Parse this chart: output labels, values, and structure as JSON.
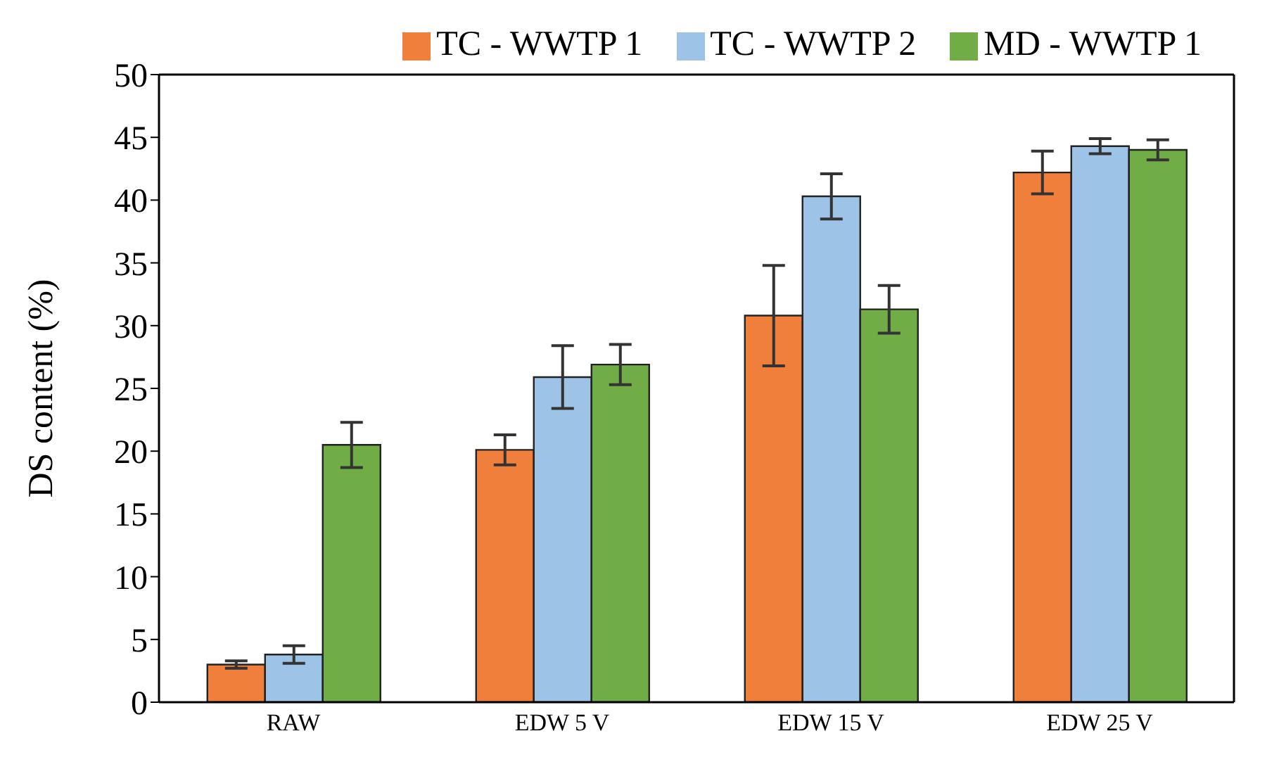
{
  "chart_data": {
    "type": "bar",
    "ylabel": "DS content (%)",
    "categories": [
      "RAW",
      "EDW  5 V",
      "EDW  15 V",
      "EDW  25 V"
    ],
    "series": [
      {
        "name": "TC - WWTP 1",
        "color": "#f07f3c",
        "values": [
          3.0,
          20.1,
          30.8,
          42.2
        ],
        "errors": [
          0.3,
          1.2,
          4.0,
          1.7
        ]
      },
      {
        "name": "TC - WWTP 2",
        "color": "#9dc3e6",
        "values": [
          3.8,
          25.9,
          40.3,
          44.3
        ],
        "errors": [
          0.7,
          2.5,
          1.8,
          0.6
        ]
      },
      {
        "name": "MD - WWTP 1",
        "color": "#70ad47",
        "values": [
          20.5,
          26.9,
          31.3,
          44.0
        ],
        "errors": [
          1.8,
          1.6,
          1.9,
          0.8
        ]
      }
    ],
    "ylim": [
      0,
      50
    ],
    "yticks": [
      0,
      5,
      10,
      15,
      20,
      25,
      30,
      35,
      40,
      45,
      50
    ],
    "legend": "top right"
  }
}
